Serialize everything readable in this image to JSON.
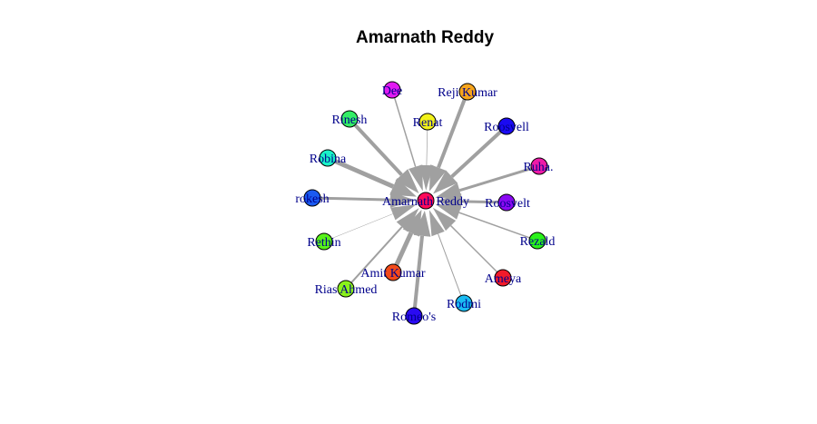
{
  "title": "Amarnath Reddy",
  "colors": {
    "edge": "#a0a0a0",
    "label": "#00008b"
  },
  "center": {
    "label": "Amarnath Reddy",
    "color": "#ff0a5a"
  },
  "nodes": [
    {
      "label": "Dee",
      "color": "#e21af2",
      "weight": 1.5
    },
    {
      "label": "Reji Kumar",
      "color": "#f7a51c",
      "weight": 4
    },
    {
      "label": "Renat",
      "color": "#f2f21a",
      "weight": 0.7
    },
    {
      "label": "Roosvell",
      "color": "#1a0af2",
      "weight": 4
    },
    {
      "label": "Rinesh",
      "color": "#33ee66",
      "weight": 4
    },
    {
      "label": "Ruha.",
      "color": "#ee1aa8",
      "weight": 3
    },
    {
      "label": "Robina",
      "color": "#1af2c8",
      "weight": 5
    },
    {
      "label": "Roosvelt",
      "color": "#8a0af2",
      "weight": 3
    },
    {
      "label": "rokesh",
      "color": "#1a5af2",
      "weight": 3
    },
    {
      "label": "Rezald",
      "color": "#2af21a",
      "weight": 1.5
    },
    {
      "label": "Rethin",
      "color": "#58f21a",
      "weight": 0.5
    },
    {
      "label": "Ameya",
      "color": "#f21a2a",
      "weight": 1.5
    },
    {
      "label": "Amit Kumar",
      "color": "#f24a1a",
      "weight": 5
    },
    {
      "label": "Rias Ahmed",
      "color": "#8af21a",
      "weight": 2
    },
    {
      "label": "Rodmi",
      "color": "#1abcf2",
      "weight": 1
    },
    {
      "label": "Romeo's",
      "color": "#2a0af2",
      "weight": 4
    }
  ]
}
